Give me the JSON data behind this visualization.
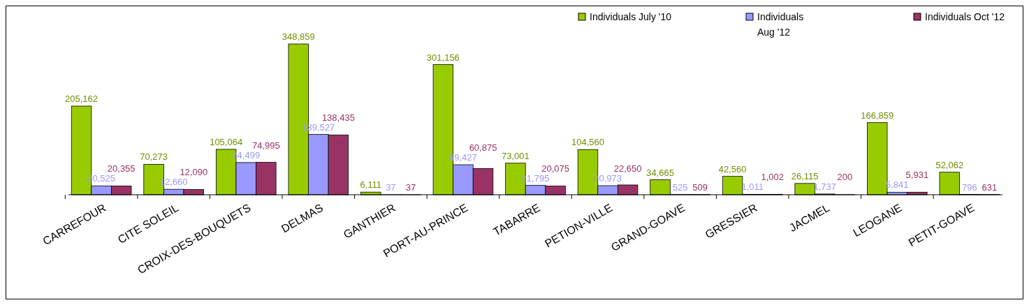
{
  "chart_data": {
    "type": "bar",
    "categories": [
      "CARREFOUR",
      "CITE SOLEIL",
      "CROIX-DES-BOUQUETS",
      "DELMAS",
      "GANTHIER",
      "PORT-AU-PRINCE",
      "TABARRE",
      "PETION-VILLE",
      "GRAND-GOAVE",
      "GRESSIER",
      "JACMEL",
      "LEOGANE",
      "PETIT-GOAVE"
    ],
    "series": [
      {
        "name": "Individuals July '10",
        "color": "#99cc00",
        "values": [
          205162,
          70273,
          105064,
          348859,
          6111,
          301156,
          73001,
          104560,
          34665,
          42560,
          26115,
          166859,
          52062
        ],
        "value_labels": [
          "205,162",
          "70,273",
          "105,064",
          "348,859",
          "6,111",
          "301,156",
          "73,001",
          "104,560",
          "34,665",
          "42,560",
          "26,115",
          "166,859",
          "52,062"
        ]
      },
      {
        "name": "Individuals Aug '12",
        "color": "#9999ff",
        "values": [
          20525,
          12660,
          74499,
          139527,
          37,
          69427,
          21795,
          20973,
          525,
          1011,
          1737,
          5841,
          796
        ],
        "value_labels": [
          "20,525",
          "12,660",
          "74,499",
          "139,527",
          "37",
          "69,427",
          "21,795",
          "20,973",
          "525",
          "1,011",
          "1,737",
          "5,841",
          "796"
        ]
      },
      {
        "name": "Individuals Oct '12",
        "color": "#993366",
        "values": [
          20355,
          12090,
          74995,
          138435,
          37,
          60875,
          20075,
          22650,
          509,
          1002,
          200,
          5931,
          631
        ],
        "value_labels": [
          "20,355",
          "12,090",
          "74,995",
          "138,435",
          "37",
          "60,875",
          "20,075",
          "22,650",
          "509",
          "1,002",
          "200",
          "5,931",
          "631"
        ]
      }
    ],
    "legend": "top right"
  }
}
